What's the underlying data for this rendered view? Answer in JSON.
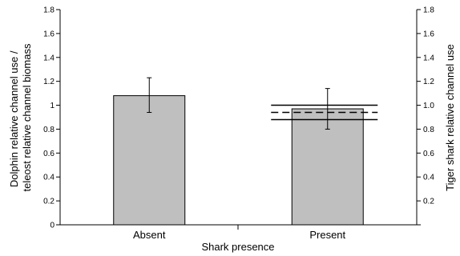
{
  "chart_data": {
    "type": "bar",
    "categories": [
      "Absent",
      "Present"
    ],
    "values": [
      1.08,
      0.97
    ],
    "error_bars": [
      {
        "low": 0.94,
        "high": 1.23
      },
      {
        "low": 0.8,
        "high": 1.14
      }
    ],
    "xlabel": "Shark presence",
    "ylabel_lines": [
      "Dolphin relative channel use /",
      "teleost relative channel biomass"
    ],
    "y2label": "Tiger shark relative channel use",
    "ylim": [
      0,
      1.8
    ],
    "yticks": [
      "0",
      "0.2",
      "0.4",
      "0.6",
      "0.8",
      "1",
      "1.2",
      "1.4",
      "1.6",
      "1.8"
    ],
    "y2ticks": [
      "0.2",
      "0.4",
      "0.6",
      "0.8",
      "1.0",
      "1.2",
      "1.4",
      "1.6",
      "1.8"
    ],
    "reference_lines": [
      {
        "value": 1.0,
        "style": "solid"
      },
      {
        "value": 0.94,
        "style": "dashed"
      },
      {
        "value": 0.88,
        "style": "solid"
      }
    ],
    "bar_color": "#bfbfbf",
    "grid": false
  }
}
